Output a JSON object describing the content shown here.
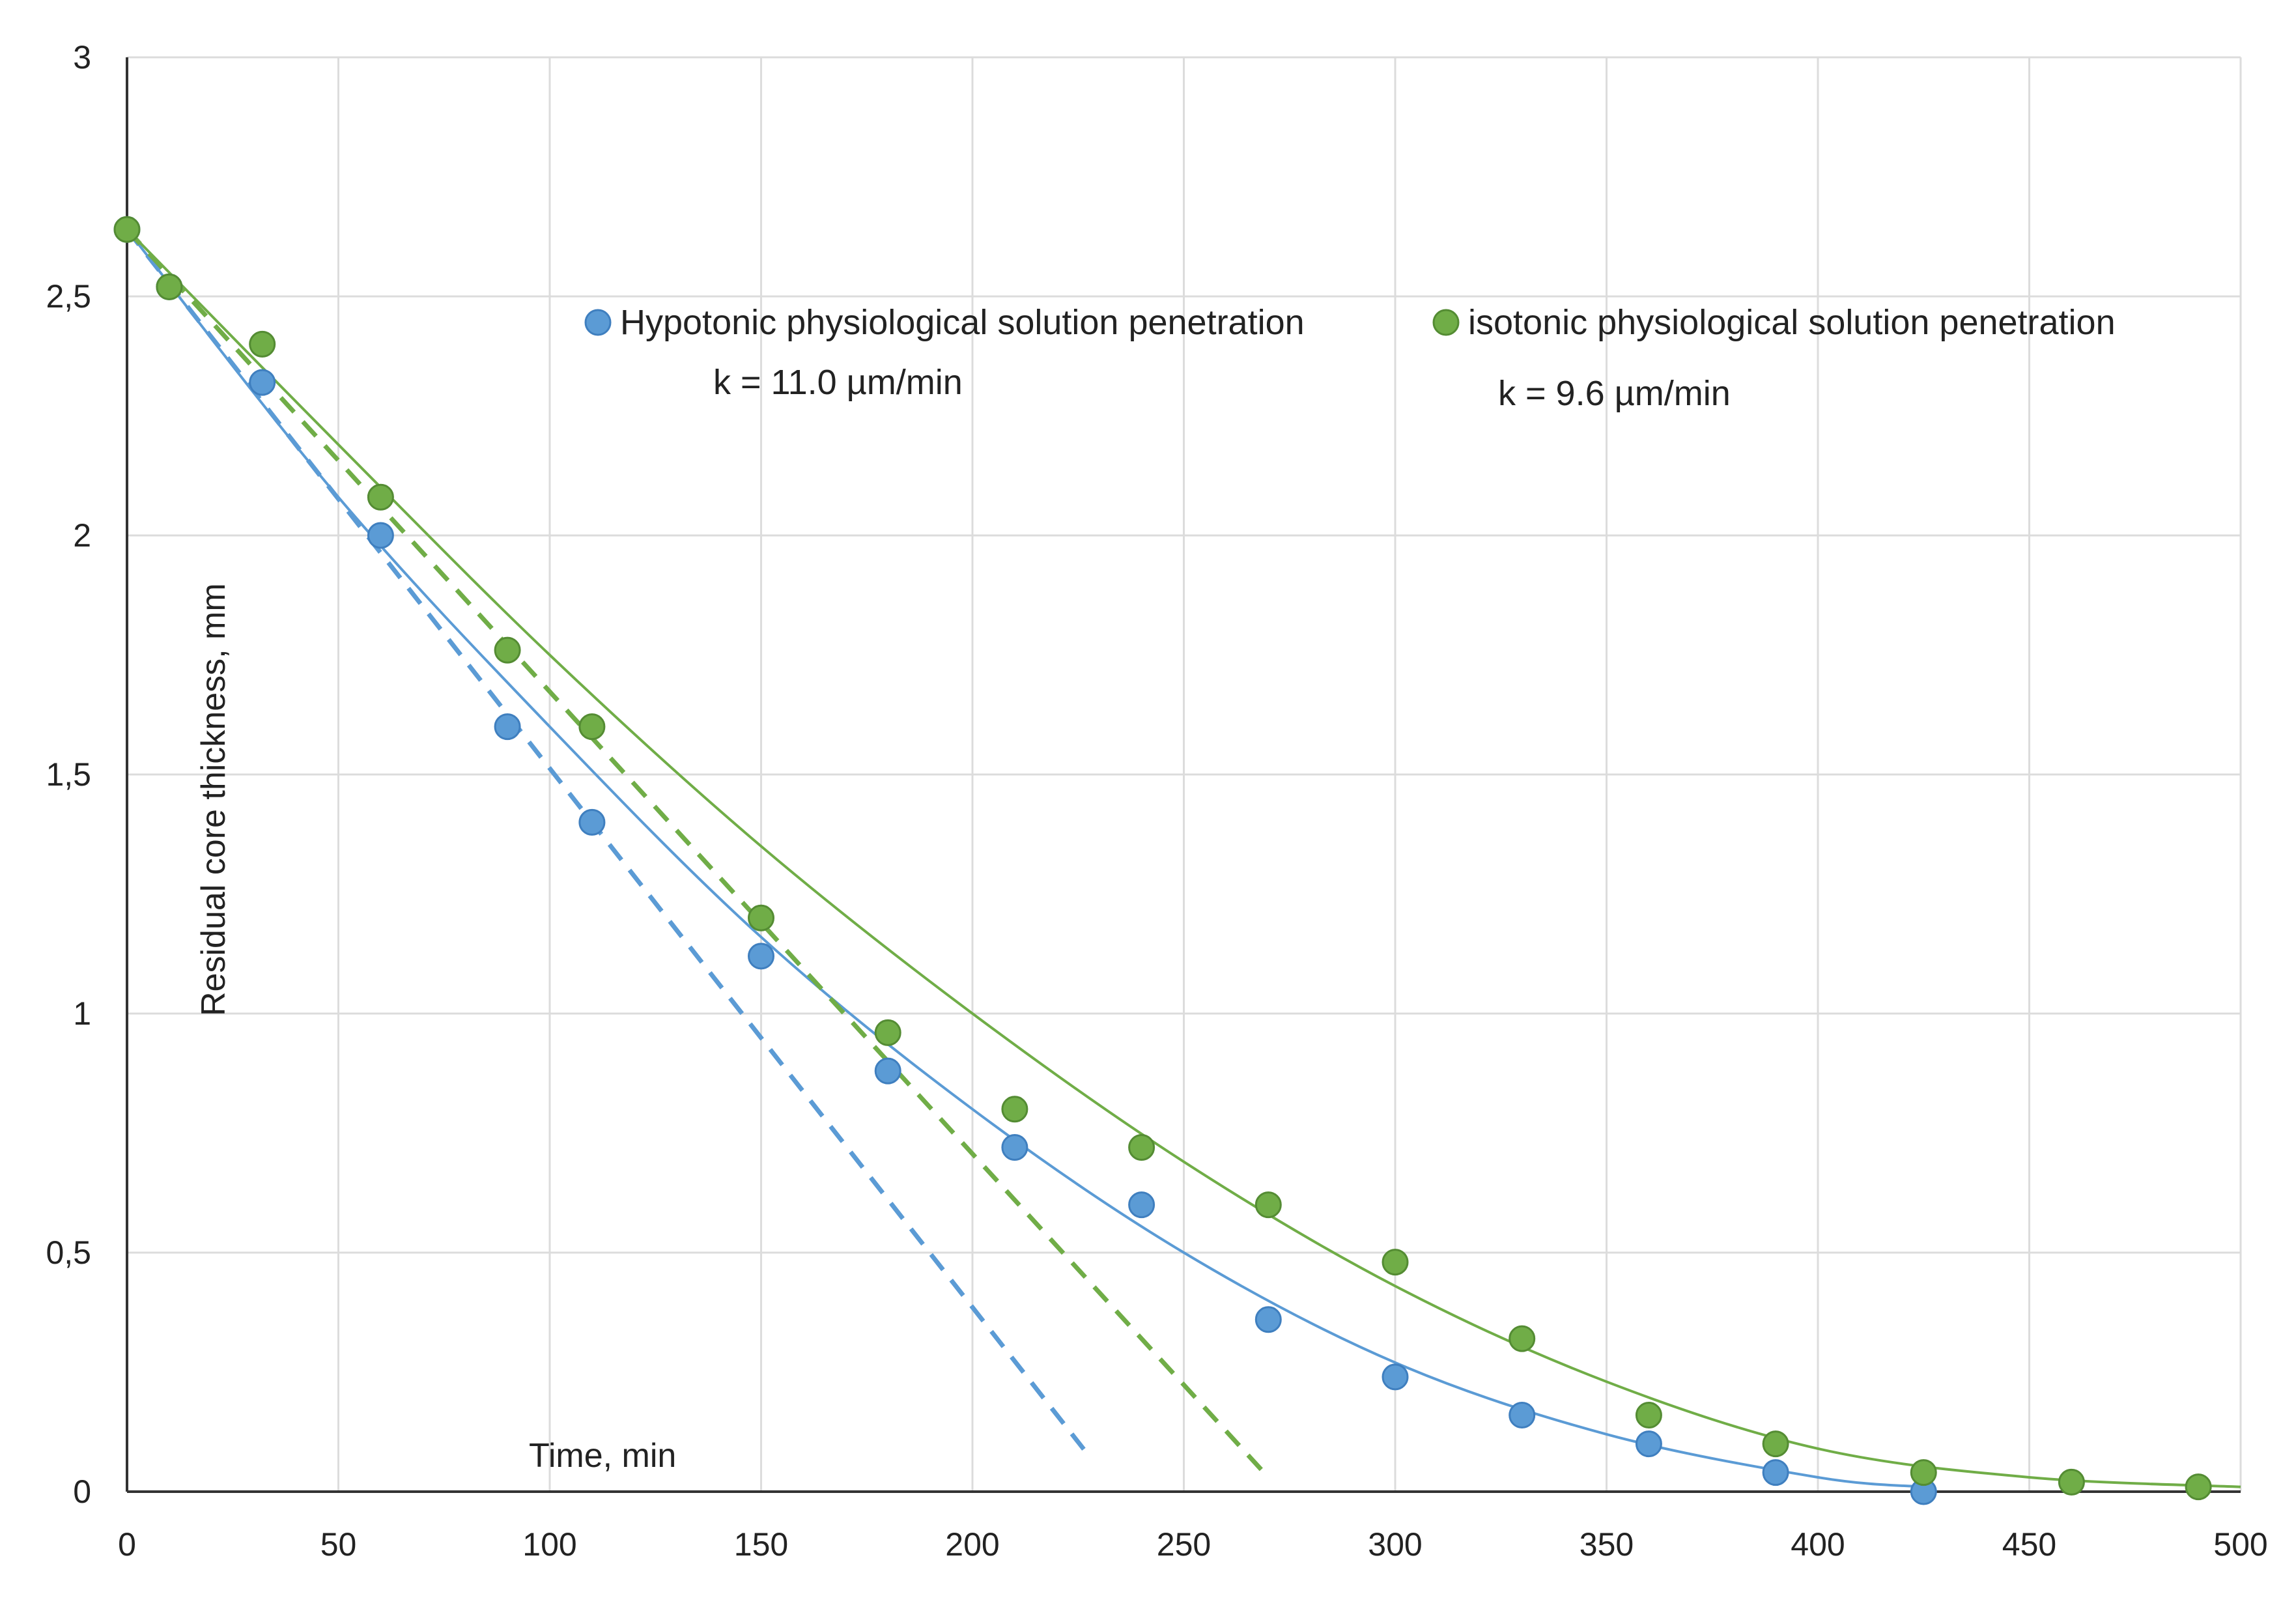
{
  "chart_data": {
    "type": "scatter",
    "title": "",
    "xlabel": "Time, min",
    "ylabel": "Residual core thickness, mm",
    "xlim": [
      0,
      500
    ],
    "ylim": [
      0,
      3
    ],
    "xticks": [
      "0",
      "50",
      "100",
      "150",
      "200",
      "250",
      "300",
      "350",
      "400",
      "450",
      "500"
    ],
    "yticks": [
      "0",
      "0,5",
      "1",
      "1,5",
      "2",
      "2,5",
      "3"
    ],
    "grid": true,
    "series": [
      {
        "name": "Hypotonic physiological solution penetration",
        "annotation": "k = 11.0 µm/min",
        "color": "#5b9bd5",
        "x": [
          0,
          10,
          32,
          60,
          90,
          110,
          150,
          180,
          210,
          240,
          270,
          300,
          330,
          360,
          390,
          425
        ],
        "y": [
          2.64,
          2.52,
          2.32,
          2.0,
          1.6,
          1.4,
          1.12,
          0.88,
          0.72,
          0.6,
          0.36,
          0.24,
          0.16,
          0.1,
          0.04,
          0.0
        ],
        "trend": [
          [
            0,
            2.64
          ],
          [
            50,
            2.08
          ],
          [
            100,
            1.6
          ],
          [
            150,
            1.16
          ],
          [
            200,
            0.8
          ],
          [
            250,
            0.5
          ],
          [
            300,
            0.27
          ],
          [
            350,
            0.12
          ],
          [
            400,
            0.03
          ],
          [
            425,
            0.01
          ]
        ],
        "linear_fit": [
          [
            0,
            2.64
          ],
          [
            228,
            0.07
          ]
        ]
      },
      {
        "name": "isotonic physiological solution penetration",
        "annotation": "k = 9.6 µm/min",
        "color": "#70ad47",
        "x": [
          0,
          10,
          32,
          60,
          90,
          110,
          150,
          180,
          210,
          240,
          270,
          300,
          330,
          360,
          390,
          425,
          460,
          490
        ],
        "y": [
          2.64,
          2.52,
          2.4,
          2.08,
          1.76,
          1.6,
          1.2,
          0.96,
          0.8,
          0.72,
          0.6,
          0.48,
          0.32,
          0.16,
          0.1,
          0.04,
          0.02,
          0.01
        ],
        "trend": [
          [
            0,
            2.64
          ],
          [
            50,
            2.19
          ],
          [
            100,
            1.75
          ],
          [
            150,
            1.35
          ],
          [
            200,
            1.0
          ],
          [
            250,
            0.69
          ],
          [
            300,
            0.43
          ],
          [
            350,
            0.23
          ],
          [
            400,
            0.09
          ],
          [
            450,
            0.03
          ],
          [
            500,
            0.01
          ]
        ],
        "linear_fit": [
          [
            0,
            2.64
          ],
          [
            270,
            0.03
          ]
        ]
      }
    ]
  }
}
